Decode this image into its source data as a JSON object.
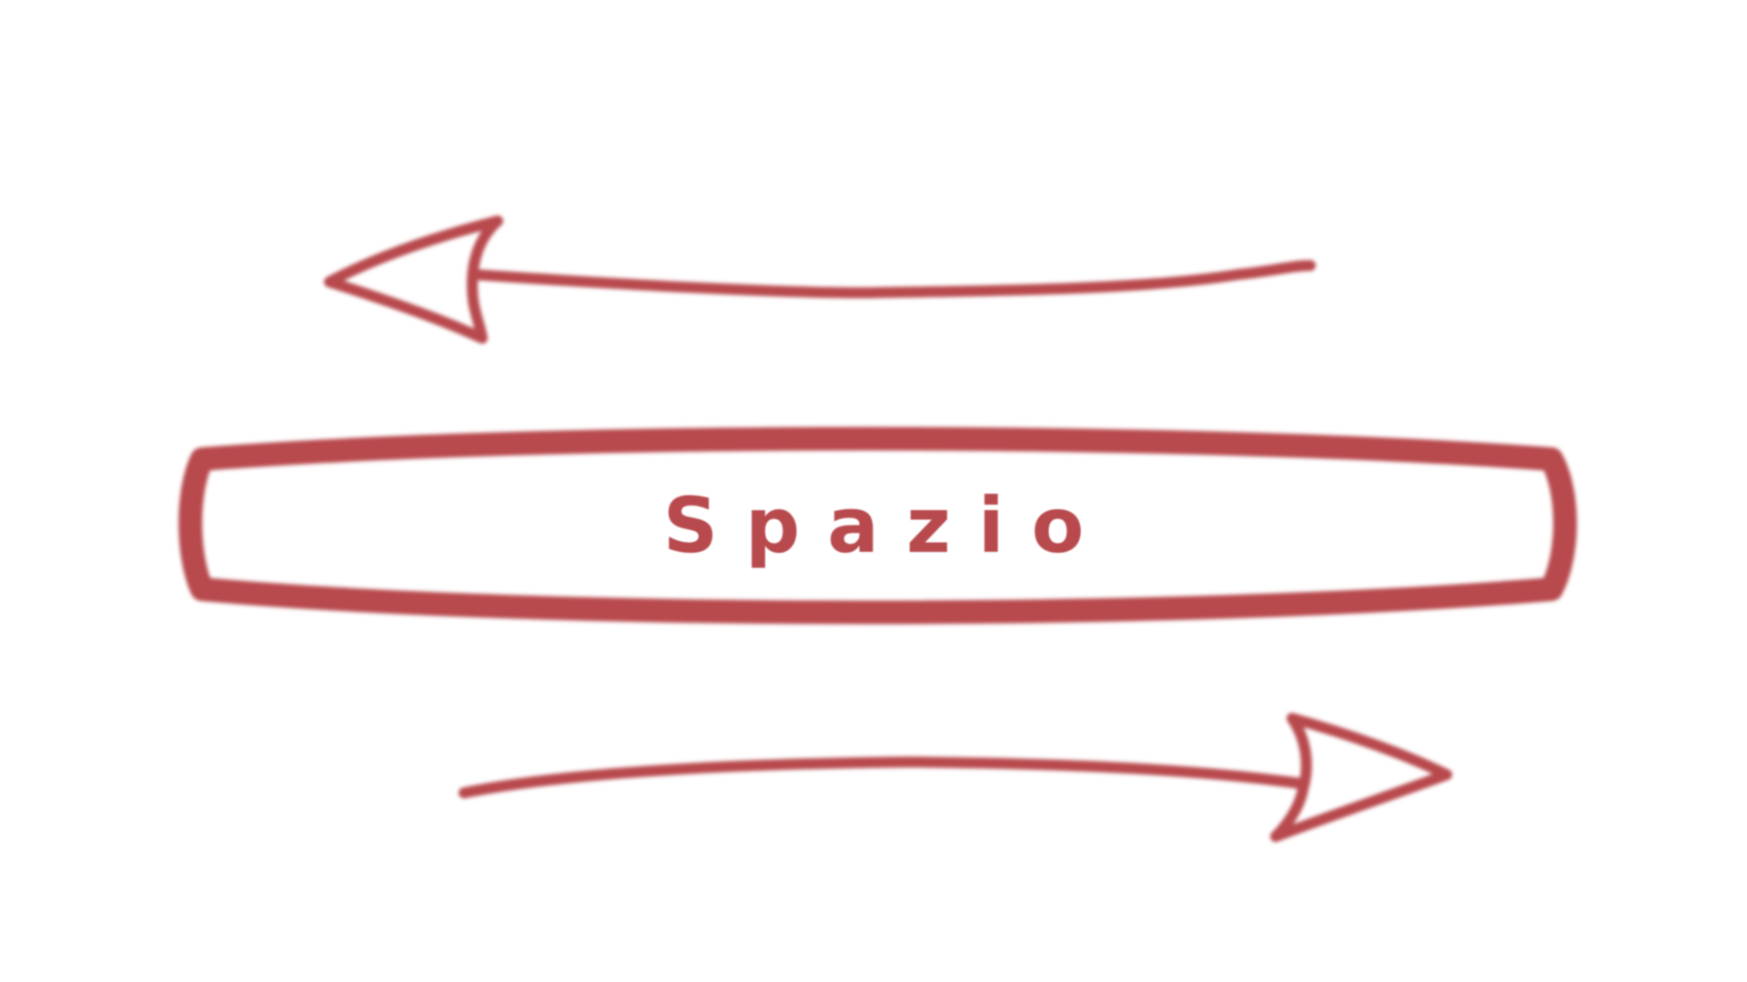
{
  "diagram": {
    "label": "Spazio",
    "stroke_color": "#b84a4e",
    "elements": [
      {
        "kind": "arrow",
        "direction": "left",
        "semantic": "left-arrow-icon"
      },
      {
        "kind": "box",
        "semantic": "label-box"
      },
      {
        "kind": "arrow",
        "direction": "right",
        "semantic": "right-arrow-icon"
      }
    ]
  }
}
